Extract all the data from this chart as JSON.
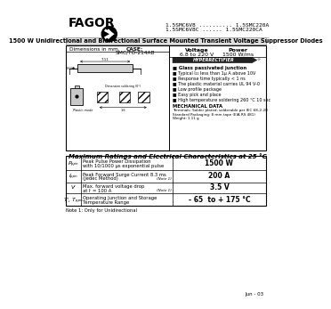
{
  "title_part1": "1.5SMC6V8 .......... 1.5SMC220A",
  "title_part2": "1.5SMC6V8C ...... 1.5SMC220CA",
  "main_title": "1500 W Unidirectional and Bidirectional Surface Mounted Transient Voltage Suppressor Diodes",
  "case_label1": "CASE:",
  "case_label2": "SMC/TO-214AB",
  "voltage_title": "Voltage",
  "voltage_value": "6.8 to 220 V",
  "power_title": "Power",
  "power_value": "1500 W/ms",
  "features_title": "Glass passivated junction",
  "features": [
    "Typical I₂₂ less than 1μ A above 10V",
    "Response time typically < 1 ns",
    "The plastic material carries UL 94 V-0",
    "Low profile package",
    "Easy pick and place",
    "High temperature soldering 260 °C 10 sec"
  ],
  "mech_title": "MECHANICAL DATA",
  "mech_lines": [
    "Terminals: Solder plated, solderable per IEC 68-2-20",
    "Standard Packaging: 8 mm tape (EIA RS 481)",
    "Weight: 1.11 g"
  ],
  "table_title": "Maximum Ratings and Electrical Characteristics at 25 °C",
  "table_rows": [
    {
      "symbol": "Pₚₚₙ",
      "desc_line1": "Peak Pulse Power Dissipation",
      "desc_line2": "with 10/1000 μs exponential pulse",
      "note": "",
      "value": "1500 W"
    },
    {
      "symbol": "Iₚₚₙ",
      "desc_line1": "Peak Forward Surge Current 8.3 ms",
      "desc_line2": "(Jedec Method)",
      "note": "(Note 1)",
      "value": "200 A"
    },
    {
      "symbol": "Vⁱ",
      "desc_line1": "Max. forward voltage drop",
      "desc_line2": "at Iⁱ = 100 A",
      "note": "(Note 1)",
      "value": "3.5 V"
    },
    {
      "symbol": "Tⁱ, Tₚₚₙ",
      "desc_line1": "Operating Junction and Storage",
      "desc_line2": "Temperature Range",
      "note": "",
      "value": "- 65  to + 175 °C"
    }
  ],
  "note_text": "Note 1: Only for Unidirectional",
  "date_text": "Jun - 03",
  "dim_text": "Dimensions in mm.",
  "hyperrectifier": "HYPERRECTIFIER",
  "fagor_text": "FAGOR"
}
